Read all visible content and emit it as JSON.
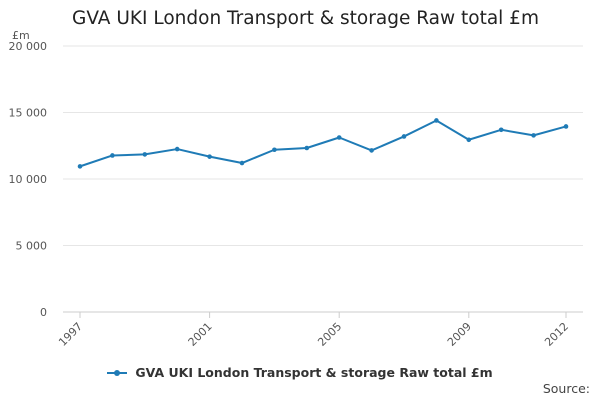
{
  "title": "GVA UKI London Transport & storage Raw total £m",
  "unit_label": "£m",
  "source_label": "Source:",
  "colors": {
    "series": "#1f7bb6",
    "grid": "#e6e6e6",
    "axis": "#cccccc",
    "text": "#555555"
  },
  "chart_data": {
    "type": "line",
    "title": "GVA UKI London Transport & storage Raw total £m",
    "xlabel": "",
    "ylabel": "£m",
    "x": [
      1997,
      1998,
      1999,
      2000,
      2001,
      2002,
      2003,
      2004,
      2005,
      2006,
      2007,
      2008,
      2009,
      2010,
      2011,
      2012
    ],
    "x_ticks": [
      "1997",
      "2001",
      "2005",
      "2009",
      "2012"
    ],
    "y_ticks": [
      "0",
      "5 000",
      "10 000",
      "15 000",
      "20 000"
    ],
    "y_tick_values": [
      0,
      5000,
      10000,
      15000,
      20000
    ],
    "ylim": [
      0,
      20000
    ],
    "grid": true,
    "legend_position": "bottom",
    "series": [
      {
        "name": "GVA UKI London Transport & storage Raw total £m",
        "values": [
          10950,
          11770,
          11850,
          12250,
          11680,
          11200,
          12200,
          12330,
          13120,
          12150,
          13200,
          14400,
          12950,
          13700,
          13280,
          13950
        ]
      }
    ]
  }
}
